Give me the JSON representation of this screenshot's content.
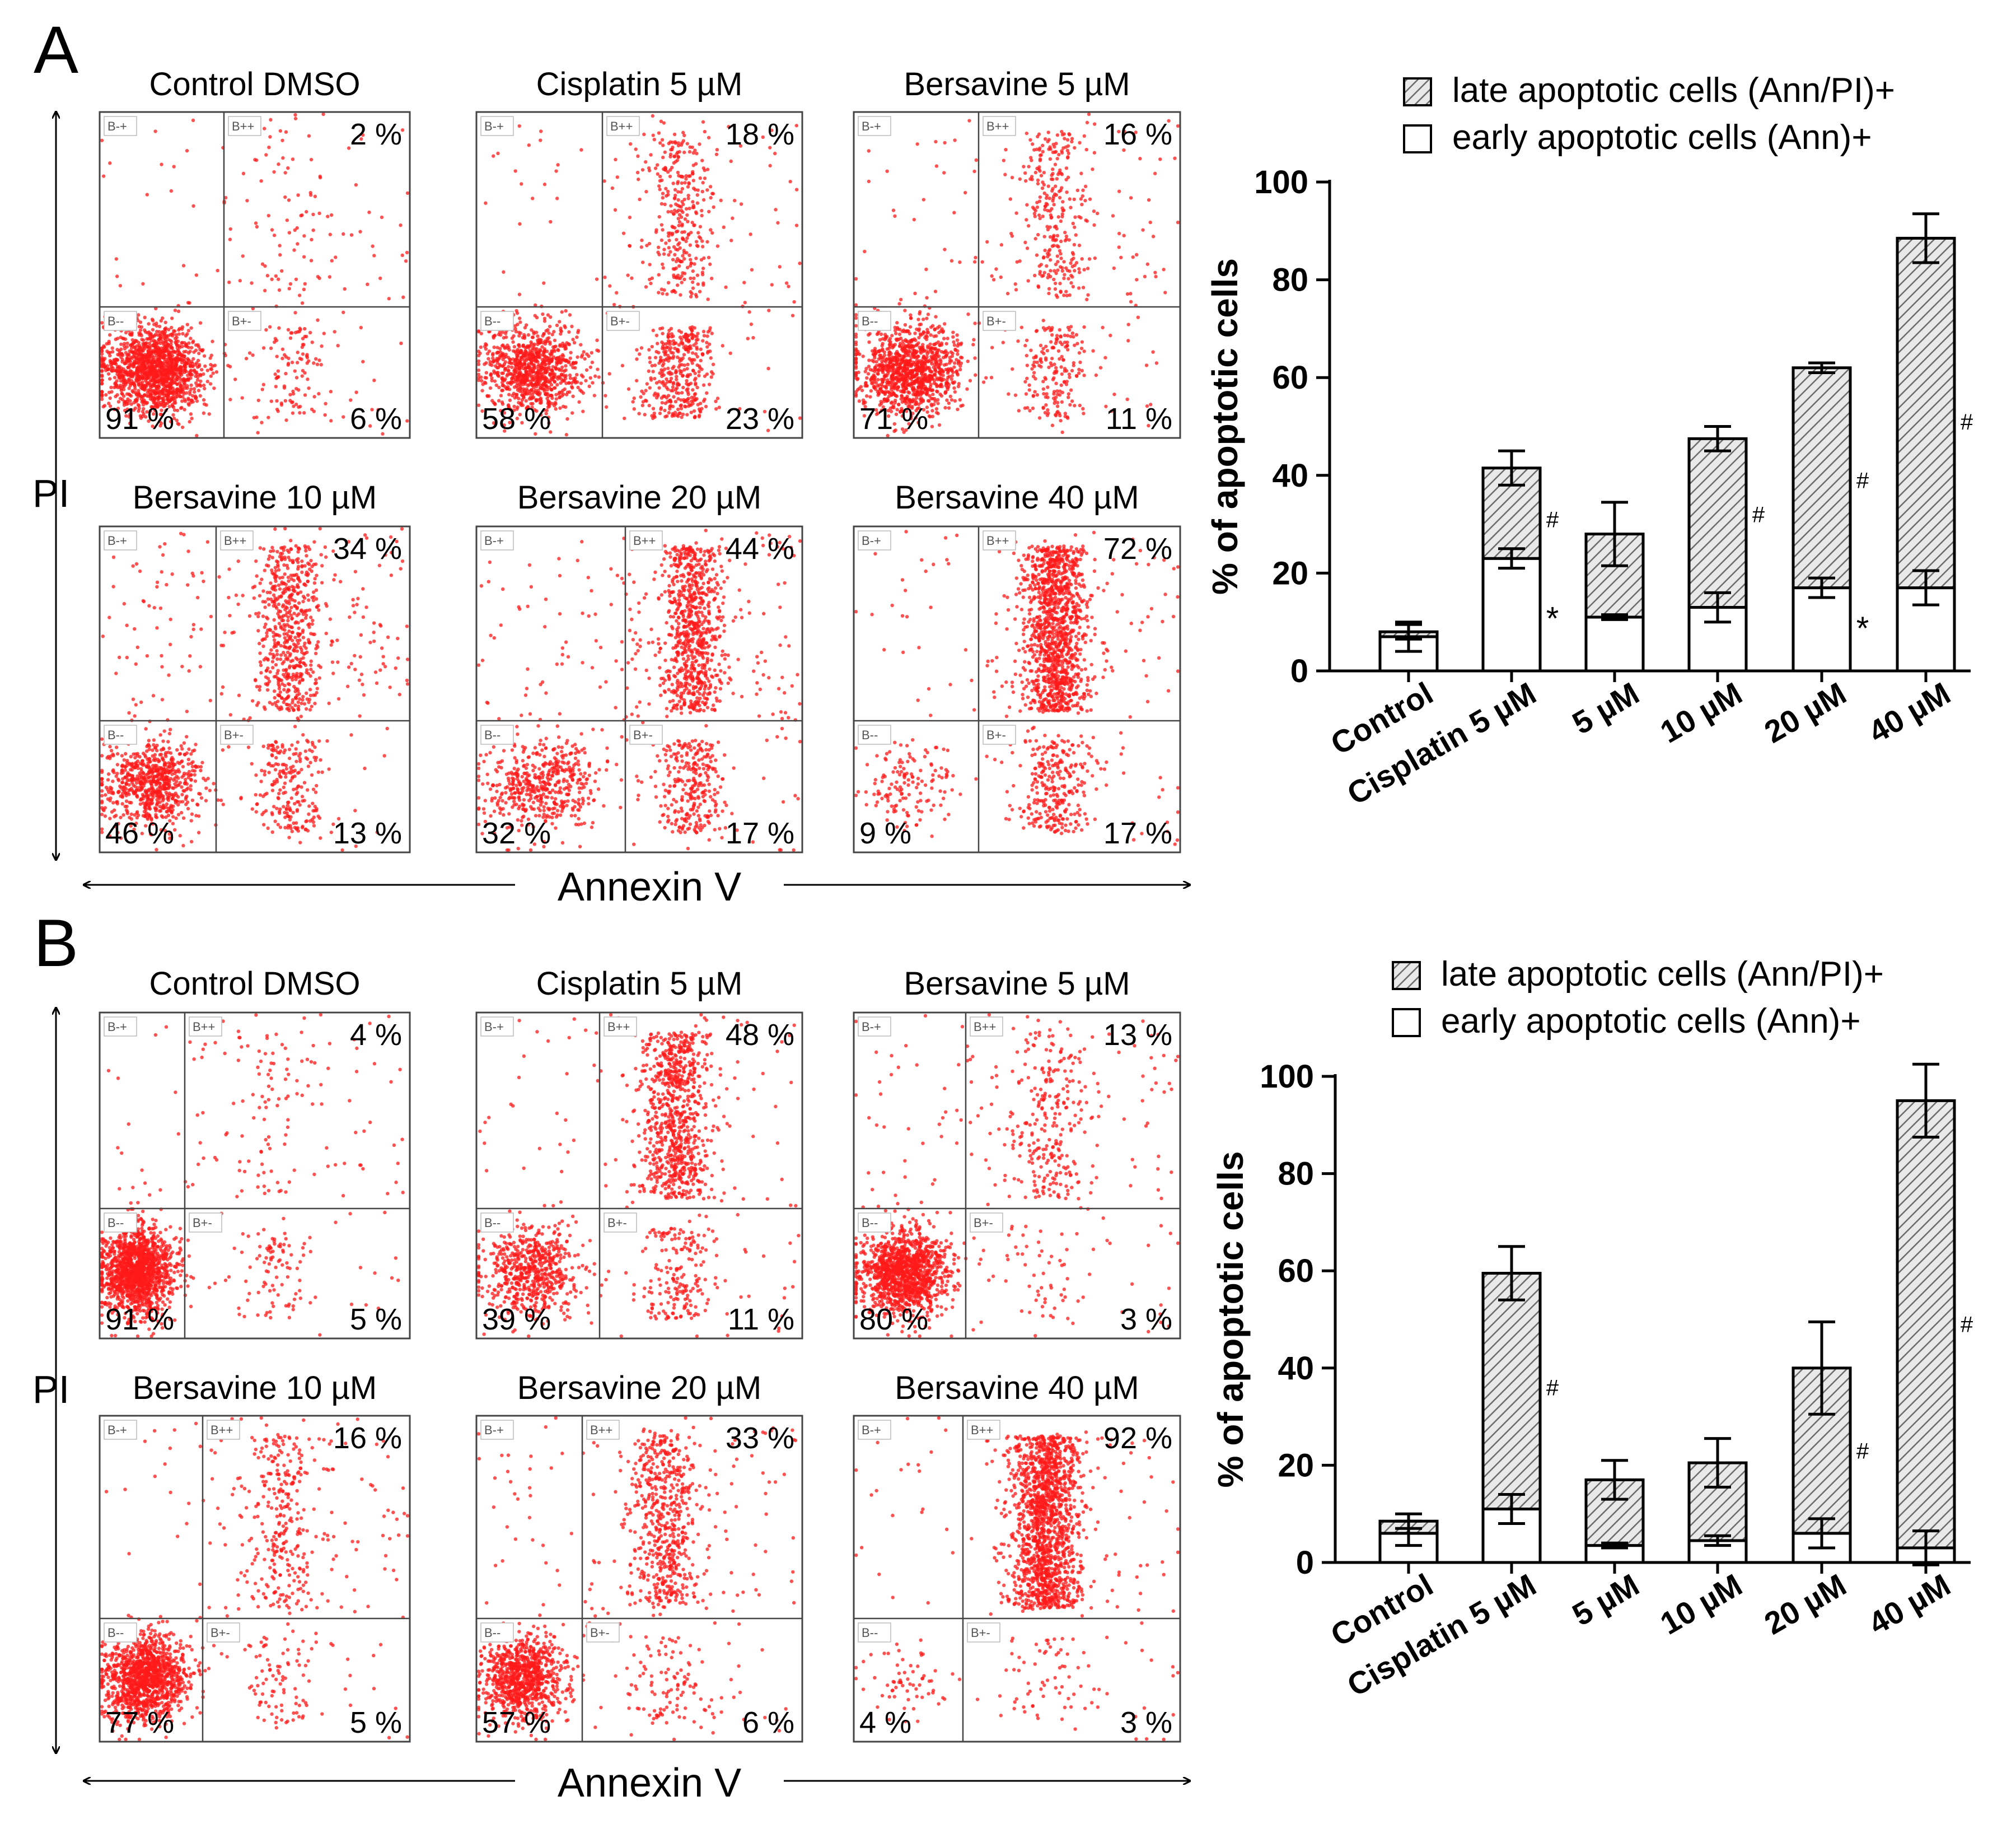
{
  "panels": [
    {
      "letter": "A",
      "y_axis_label": "PI",
      "x_axis_label": "Annexin V",
      "quadrant_labels": [
        "B-+",
        "B++",
        "B--",
        "B+-"
      ],
      "plots": [
        {
          "title": "Control DMSO",
          "pct_ul": "",
          "pct_ur": "2 %",
          "pct_ll": "91 %",
          "pct_lr": "6 %"
        },
        {
          "title": "Cisplatin 5 µM",
          "pct_ul": "",
          "pct_ur": "18 %",
          "pct_ll": "58 %",
          "pct_lr": "23 %"
        },
        {
          "title": "Bersavine 5 µM",
          "pct_ul": "",
          "pct_ur": "16 %",
          "pct_ll": "71 %",
          "pct_lr": "11 %"
        },
        {
          "title": "Bersavine 10 µM",
          "pct_ul": "",
          "pct_ur": "34 %",
          "pct_ll": "46 %",
          "pct_lr": "13 %"
        },
        {
          "title": "Bersavine 20 µM",
          "pct_ul": "",
          "pct_ur": "44 %",
          "pct_ll": "32 %",
          "pct_lr": "17 %"
        },
        {
          "title": "Bersavine 40 µM",
          "pct_ul": "",
          "pct_ur": "72 %",
          "pct_ll": "9 %",
          "pct_lr": "17 %"
        }
      ]
    },
    {
      "letter": "B",
      "y_axis_label": "PI",
      "x_axis_label": "Annexin V",
      "quadrant_labels": [
        "B-+",
        "B++",
        "B--",
        "B+-"
      ],
      "plots": [
        {
          "title": "Control DMSO",
          "pct_ul": "",
          "pct_ur": "4 %",
          "pct_ll": "91 %",
          "pct_lr": "5 %"
        },
        {
          "title": "Cisplatin 5 µM",
          "pct_ul": "",
          "pct_ur": "48 %",
          "pct_ll": "39 %",
          "pct_lr": "11 %"
        },
        {
          "title": "Bersavine 5 µM",
          "pct_ul": "",
          "pct_ur": "13 %",
          "pct_ll": "80 %",
          "pct_lr": "3 %"
        },
        {
          "title": "Bersavine 10 µM",
          "pct_ul": "",
          "pct_ur": "16 %",
          "pct_ll": "77 %",
          "pct_lr": "5 %"
        },
        {
          "title": "Bersavine 20 µM",
          "pct_ul": "",
          "pct_ur": "33 %",
          "pct_ll": "57 %",
          "pct_lr": "6 %"
        },
        {
          "title": "Bersavine 40 µM",
          "pct_ul": "",
          "pct_ur": "92 %",
          "pct_ll": "4 %",
          "pct_lr": "3 %"
        }
      ]
    }
  ],
  "chart_data": [
    {
      "type": "bar",
      "stacked": true,
      "panel": "A",
      "ylabel": "% of apoptotic cells",
      "ylim": [
        0,
        100
      ],
      "yticks": [
        0,
        20,
        40,
        60,
        80,
        100
      ],
      "categories": [
        "Control",
        "Cisplatin 5 µM",
        "5 µM",
        "10 µM",
        "20 µM",
        "40 µM"
      ],
      "series": [
        {
          "name": "early apoptotic cells (Ann)+",
          "pattern": "white",
          "values": [
            7,
            23,
            11,
            13,
            17,
            17
          ],
          "errors": [
            3,
            2,
            0.5,
            3,
            2,
            3.5
          ]
        },
        {
          "name": "late apoptotic cells (Ann/PI)+",
          "pattern": "hatched",
          "values": [
            1,
            18.5,
            17,
            34.5,
            45,
            71.5
          ],
          "errors": [
            1.5,
            3.5,
            6.5,
            2.5,
            1,
            5
          ]
        }
      ],
      "legend": [
        "late apoptotic cells (Ann/PI)+",
        "early apoptotic cells (Ann)+"
      ],
      "annotations": [
        {
          "category": "Cisplatin 5 µM",
          "text": "#",
          "y": 31
        },
        {
          "category": "Cisplatin 5 µM",
          "text": "*",
          "y": 10
        },
        {
          "category": "10 µM",
          "text": "#",
          "y": 32
        },
        {
          "category": "20 µM",
          "text": "#",
          "y": 39
        },
        {
          "category": "20 µM",
          "text": "*",
          "y": 8
        },
        {
          "category": "40 µM",
          "text": "#",
          "y": 51
        }
      ]
    },
    {
      "type": "bar",
      "stacked": true,
      "panel": "B",
      "ylabel": "% of apoptotic cells",
      "ylim": [
        0,
        100
      ],
      "yticks": [
        0,
        20,
        40,
        60,
        80,
        100
      ],
      "categories": [
        "Control",
        "Cisplatin 5 µM",
        "5 µM",
        "10 µM",
        "20 µM",
        "40 µM"
      ],
      "series": [
        {
          "name": "early apoptotic cells (Ann)+",
          "pattern": "white",
          "values": [
            6,
            11,
            3.5,
            4.5,
            6,
            3
          ],
          "errors": [
            2.5,
            3,
            0.5,
            1,
            3,
            3.5
          ]
        },
        {
          "name": "late apoptotic cells (Ann/PI)+",
          "pattern": "hatched",
          "values": [
            2.5,
            48.5,
            13.5,
            16,
            34,
            92
          ],
          "errors": [
            1.5,
            5.5,
            4,
            5,
            9.5,
            7.5
          ]
        }
      ],
      "legend": [
        "late apoptotic cells (Ann/PI)+",
        "early apoptotic cells (Ann)+"
      ],
      "annotations": [
        {
          "category": "Cisplatin 5 µM",
          "text": "#",
          "y": 36
        },
        {
          "category": "20 µM",
          "text": "#",
          "y": 23
        },
        {
          "category": "40 µM",
          "text": "#",
          "y": 49
        }
      ]
    }
  ]
}
